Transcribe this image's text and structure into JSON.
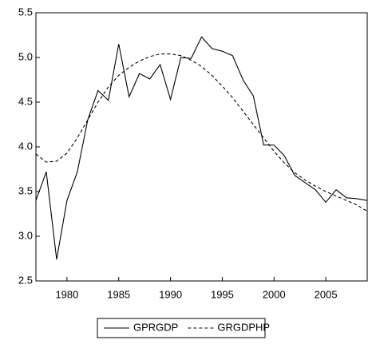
{
  "chart_data": {
    "type": "line",
    "x": [
      1977,
      1978,
      1979,
      1980,
      1981,
      1982,
      1983,
      1984,
      1985,
      1986,
      1987,
      1988,
      1989,
      1990,
      1991,
      1992,
      1993,
      1994,
      1995,
      1996,
      1997,
      1998,
      1999,
      2000,
      2001,
      2002,
      2003,
      2004,
      2005,
      2006,
      2007,
      2008,
      2009
    ],
    "series": [
      {
        "name": "GPRGDP",
        "color": "#000000",
        "dashed": false,
        "values": [
          3.4,
          3.72,
          2.74,
          3.4,
          3.72,
          4.3,
          4.63,
          4.52,
          5.15,
          4.56,
          4.82,
          4.76,
          4.92,
          4.53,
          5.0,
          4.99,
          5.23,
          5.1,
          5.07,
          5.02,
          4.75,
          4.57,
          4.02,
          4.02,
          3.9,
          3.68,
          3.6,
          3.52,
          3.38,
          3.52,
          3.43,
          3.42,
          3.4
        ]
      },
      {
        "name": "GRGDPHP",
        "color": "#000000",
        "dashed": true,
        "values": [
          3.92,
          3.83,
          3.84,
          3.93,
          4.1,
          4.3,
          4.5,
          4.67,
          4.8,
          4.89,
          4.96,
          5.01,
          5.04,
          5.04,
          5.02,
          4.97,
          4.9,
          4.8,
          4.68,
          4.55,
          4.4,
          4.25,
          4.1,
          3.95,
          3.82,
          3.71,
          3.63,
          3.56,
          3.5,
          3.45,
          3.4,
          3.35,
          3.28
        ]
      }
    ],
    "xlim": [
      1977,
      2009
    ],
    "xticks": [
      1980,
      1985,
      1990,
      1995,
      2000,
      2005
    ],
    "ylim": [
      2.5,
      5.5
    ],
    "yticks": [
      {
        "value": 2.5,
        "label": "2.5"
      },
      {
        "value": 3,
        "label": "3.0"
      },
      {
        "value": 3.5,
        "label": "3.5"
      },
      {
        "value": 4,
        "label": "4.0"
      },
      {
        "value": 4.5,
        "label": "4.5"
      },
      {
        "value": 5,
        "label": "5.0"
      },
      {
        "value": 5.5,
        "label": "5.5"
      }
    ],
    "legend": "bottom"
  }
}
